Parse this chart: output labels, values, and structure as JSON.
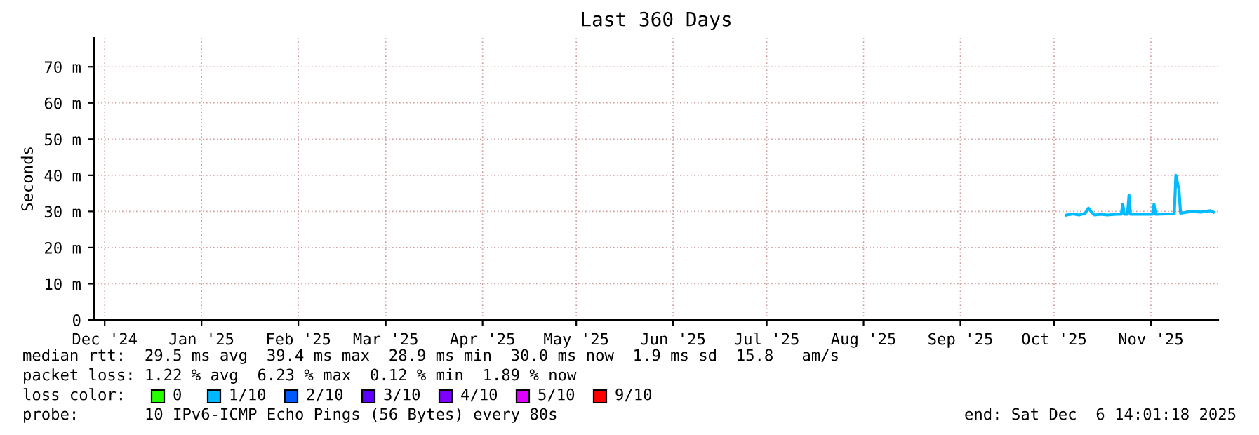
{
  "chart_data": {
    "type": "line",
    "title": "Last 360 Days",
    "ylabel": "Seconds",
    "x": [
      "2025-10-19",
      "2025-10-21",
      "2025-10-23",
      "2025-10-25",
      "2025-10-26",
      "2025-10-27",
      "2025-10-28",
      "2025-10-30",
      "2025-11-01",
      "2025-11-04",
      "2025-11-05T12:00",
      "2025-11-06",
      "2025-11-06T12:00",
      "2025-11-07T12:00",
      "2025-11-08",
      "2025-11-08T12:00",
      "2025-11-12",
      "2025-11-15T12:00",
      "2025-11-16",
      "2025-11-16T12:00",
      "2025-11-20",
      "2025-11-22T12:00",
      "2025-11-23",
      "2025-11-24",
      "2025-11-24T12:00",
      "2025-11-28",
      "2025-12-01",
      "2025-12-04",
      "2025-12-05"
    ],
    "series": [
      {
        "color": "#00bbff",
        "values": [
          29.0,
          29.3,
          29.0,
          29.5,
          30.9,
          29.8,
          29.0,
          29.2,
          29.0,
          29.2,
          29.2,
          32.0,
          29.2,
          29.2,
          34.5,
          29.2,
          29.2,
          29.2,
          32.0,
          29.2,
          29.3,
          29.3,
          40.0,
          36.0,
          29.5,
          30.0,
          29.8,
          30.2,
          29.8
        ]
      }
    ],
    "grid": true,
    "xlim": [
      "2024-12-11T14:01",
      "2025-12-06T14:01"
    ],
    "xticks": [
      {
        "value": "2024-12-15",
        "label": "Dec '24"
      },
      {
        "value": "2025-01-15",
        "label": "Jan '25"
      },
      {
        "value": "2025-02-15",
        "label": "Feb '25"
      },
      {
        "value": "2025-03-15",
        "label": "Mar '25"
      },
      {
        "value": "2025-04-15",
        "label": "Apr '25"
      },
      {
        "value": "2025-05-15",
        "label": "May '25"
      },
      {
        "value": "2025-06-15",
        "label": "Jun '25"
      },
      {
        "value": "2025-07-15",
        "label": "Jul '25"
      },
      {
        "value": "2025-08-15",
        "label": "Aug '25"
      },
      {
        "value": "2025-09-15",
        "label": "Sep '25"
      },
      {
        "value": "2025-10-15",
        "label": "Oct '25"
      },
      {
        "value": "2025-11-15",
        "label": "Nov '25"
      }
    ],
    "ylim": [
      0,
      78
    ],
    "yticks": [
      0,
      {
        "value": 10,
        "label": "10 m"
      },
      {
        "value": 20,
        "label": "20 m"
      },
      {
        "value": 30,
        "label": "30 m"
      },
      {
        "value": 40,
        "label": "40 m"
      },
      {
        "value": 50,
        "label": "50 m"
      },
      {
        "value": 60,
        "label": "60 m"
      },
      {
        "value": 70,
        "label": "70 m"
      }
    ],
    "annotations": [
      "median rtt:  29.5 ms avg  39.4 ms max  28.9 ms min  30.0 ms now  1.9 ms sd  15.8   am/s",
      "packet loss: 1.22 % avg  6.23 % max  0.12 % min  1.89 % now",
      "probe:       10 IPv6-ICMP Echo Pings (56 Bytes) every 80s",
      "end: Sat Dec  6 14:01:18 2025",
      "loss color:",
      "0",
      "1/10",
      "2/10",
      "3/10",
      "4/10",
      "5/10",
      "9/10"
    ]
  }
}
